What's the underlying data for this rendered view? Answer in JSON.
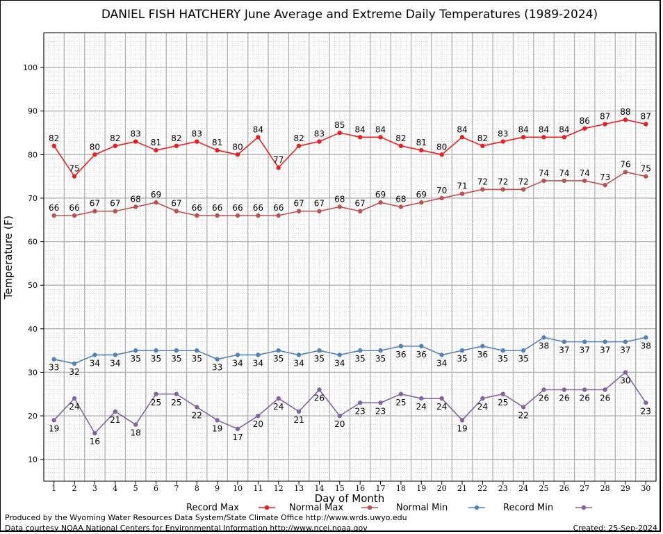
{
  "chart_data": {
    "type": "line",
    "title": "DANIEL FISH HATCHERY June Average and Extreme Daily Temperatures (1989-2024)",
    "xlabel": "Day of Month",
    "ylabel": "Temperature (F)",
    "x": [
      1,
      2,
      3,
      4,
      5,
      6,
      7,
      8,
      9,
      10,
      11,
      12,
      13,
      14,
      15,
      16,
      17,
      18,
      19,
      20,
      21,
      22,
      23,
      24,
      25,
      26,
      27,
      28,
      29,
      30
    ],
    "ylim": [
      5,
      108
    ],
    "yticks": [
      10,
      20,
      30,
      40,
      50,
      60,
      70,
      80,
      90,
      100
    ],
    "grid": true,
    "legend_position": "bottom",
    "series": [
      {
        "name": "Record Max",
        "color": "#ee1c1c",
        "label_pos": "above",
        "values": [
          82,
          75,
          80,
          82,
          83,
          81,
          82,
          83,
          81,
          80,
          84,
          77,
          82,
          83,
          85,
          84,
          84,
          82,
          81,
          80,
          84,
          82,
          83,
          84,
          84,
          84,
          86,
          87,
          88,
          87
        ]
      },
      {
        "name": "Normal Max",
        "color": "#c0504d",
        "label_pos": "above",
        "values": [
          66,
          66,
          67,
          67,
          68,
          69,
          67,
          66,
          66,
          66,
          66,
          66,
          67,
          67,
          68,
          67,
          69,
          68,
          69,
          70,
          71,
          72,
          72,
          72,
          74,
          74,
          74,
          73,
          76,
          75
        ]
      },
      {
        "name": "Normal Min",
        "color": "#4f81bd",
        "label_pos": "below",
        "values": [
          33,
          32,
          34,
          34,
          35,
          35,
          35,
          35,
          33,
          34,
          34,
          35,
          34,
          35,
          34,
          35,
          35,
          36,
          36,
          34,
          35,
          36,
          35,
          35,
          38,
          37,
          37,
          37,
          37,
          38
        ]
      },
      {
        "name": "Record Min",
        "color": "#8064a2",
        "label_pos": "below",
        "values": [
          19,
          24,
          16,
          21,
          18,
          25,
          25,
          22,
          19,
          17,
          20,
          24,
          21,
          26,
          20,
          23,
          23,
          25,
          24,
          24,
          19,
          24,
          25,
          22,
          26,
          26,
          26,
          26,
          30,
          23
        ]
      }
    ]
  },
  "footer": {
    "credit1": "Produced by the Wyoming Water Resources Data System/State Climate Office http://www.wrds.uwyo.edu",
    "credit2": "Data courtesy NOAA National Centers for Environmental Information http://www.ncei.noaa.gov",
    "created": "Created:  25-Sep-2024"
  }
}
